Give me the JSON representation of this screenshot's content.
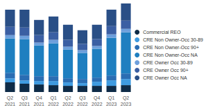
{
  "chart_data": {
    "type": "bar",
    "stacked": true,
    "legend": "right",
    "grid": false,
    "tick_labels": "x",
    "categories": [
      "Q2\n2021",
      "Q3\n2021",
      "Q4\n2021",
      "Q1\n2022",
      "Q2\n2022",
      "Q3\n2022",
      "Q4\n2022",
      "Q1\n2023",
      "Q2\n2023"
    ],
    "ylim": [
      0,
      130
    ],
    "series": [
      {
        "name": "Commercial REO",
        "color": "#0e2b47",
        "values": [
          14,
          12,
          11,
          10,
          9,
          9,
          9,
          9,
          10
        ]
      },
      {
        "name": "CRE Non Owner-Occ 30-89",
        "color": "#3f9be0",
        "values": [
          6,
          5,
          5,
          6,
          5,
          4,
          6,
          8,
          9
        ]
      },
      {
        "name": "CRE Non Owner-Occ 90+",
        "color": "#2a6db3",
        "values": [
          8,
          8,
          7,
          7,
          6,
          6,
          6,
          7,
          8
        ]
      },
      {
        "name": "CRE Non Owner-Occ NA",
        "color": "#1f7fc0",
        "values": [
          50,
          52,
          45,
          48,
          42,
          38,
          42,
          55,
          60
        ]
      },
      {
        "name": "CRE Owner Occ 30-89",
        "color": "#6d9fdc",
        "values": [
          5,
          5,
          4,
          5,
          4,
          4,
          4,
          5,
          5
        ]
      },
      {
        "name": "CRE Owner Occ 90+",
        "color": "#3b5fa3",
        "values": [
          12,
          12,
          11,
          11,
          10,
          9,
          10,
          12,
          12
        ]
      },
      {
        "name": "CRE Owner Occ NA",
        "color": "#2a4f86",
        "values": [
          25,
          26,
          22,
          23,
          22,
          20,
          21,
          24,
          25
        ]
      }
    ]
  }
}
